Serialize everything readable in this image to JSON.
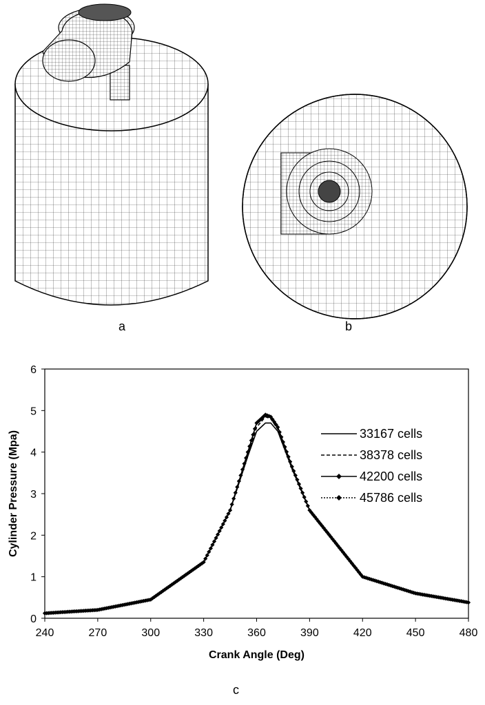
{
  "panels": [
    {
      "letter": "a"
    },
    {
      "letter": "b"
    },
    {
      "letter": "c"
    }
  ],
  "chart_data": {
    "type": "line",
    "title": "",
    "xlabel": "Crank Angle (Deg)",
    "ylabel": "Cylinder Pressure (Mpa)",
    "xlim": [
      240,
      480
    ],
    "ylim": [
      0,
      6
    ],
    "xticks": [
      240,
      270,
      300,
      330,
      360,
      390,
      420,
      450,
      480
    ],
    "yticks": [
      0,
      1,
      2,
      3,
      4,
      5,
      6
    ],
    "grid": false,
    "legend_position": "right",
    "series": [
      {
        "name": "33167 cells",
        "style": "solid",
        "x": [
          240,
          270,
          300,
          330,
          345,
          355,
          360,
          365,
          368,
          372,
          380,
          390,
          420,
          450,
          480
        ],
        "y": [
          0.12,
          0.2,
          0.45,
          1.35,
          2.6,
          3.9,
          4.5,
          4.7,
          4.7,
          4.5,
          3.6,
          2.6,
          1.0,
          0.6,
          0.38
        ]
      },
      {
        "name": "38378 cells",
        "style": "dashed",
        "x": [
          240,
          270,
          300,
          330,
          345,
          355,
          360,
          365,
          368,
          372,
          380,
          390,
          420,
          450,
          480
        ],
        "y": [
          0.12,
          0.2,
          0.45,
          1.35,
          2.6,
          3.95,
          4.6,
          4.85,
          4.8,
          4.55,
          3.6,
          2.6,
          1.0,
          0.6,
          0.38
        ]
      },
      {
        "name": "42200 cells",
        "style": "solid-diamond",
        "x": [
          240,
          270,
          300,
          330,
          345,
          355,
          360,
          365,
          368,
          372,
          380,
          390,
          420,
          450,
          480
        ],
        "y": [
          0.12,
          0.2,
          0.45,
          1.35,
          2.6,
          4.0,
          4.7,
          4.9,
          4.85,
          4.6,
          3.65,
          2.6,
          1.0,
          0.6,
          0.38
        ]
      },
      {
        "name": "45786 cells",
        "style": "dotted-diamond",
        "x": [
          240,
          270,
          300,
          330,
          345,
          355,
          360,
          365,
          368,
          372,
          380,
          390,
          420,
          450,
          480
        ],
        "y": [
          0.12,
          0.2,
          0.45,
          1.35,
          2.6,
          4.0,
          4.7,
          4.9,
          4.85,
          4.6,
          3.65,
          2.6,
          1.0,
          0.6,
          0.38
        ]
      }
    ]
  }
}
